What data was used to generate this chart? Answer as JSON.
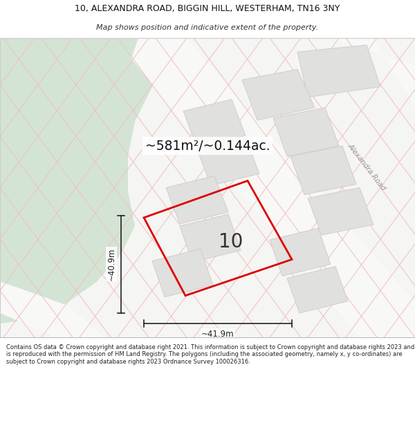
{
  "title_line1": "10, ALEXANDRA ROAD, BIGGIN HILL, WESTERHAM, TN16 3NY",
  "title_line2": "Map shows position and indicative extent of the property.",
  "area_text": "~581m²/~0.144ac.",
  "label_number": "10",
  "dim_vertical": "~40.9m",
  "dim_horizontal": "~41.9m",
  "road_label": "Alexandra Road",
  "footer_text": "Contains OS data © Crown copyright and database right 2021. This information is subject to Crown copyright and database rights 2023 and is reproduced with the permission of HM Land Registry. The polygons (including the associated geometry, namely x, y co-ordinates) are subject to Crown copyright and database rights 2023 Ordnance Survey 100026316.",
  "bg_map_color": "#f5f5f3",
  "green_area_color": "#d4e4d4",
  "property_edge_color": "#dd0000",
  "grid_line_color": "#f0c0c0",
  "road_line_color": "#f0c0c0",
  "building_color": "#e0e0de",
  "building_edge": "#d0c8c8",
  "footer_bg": "#ffffff",
  "title_bg": "#ffffff"
}
